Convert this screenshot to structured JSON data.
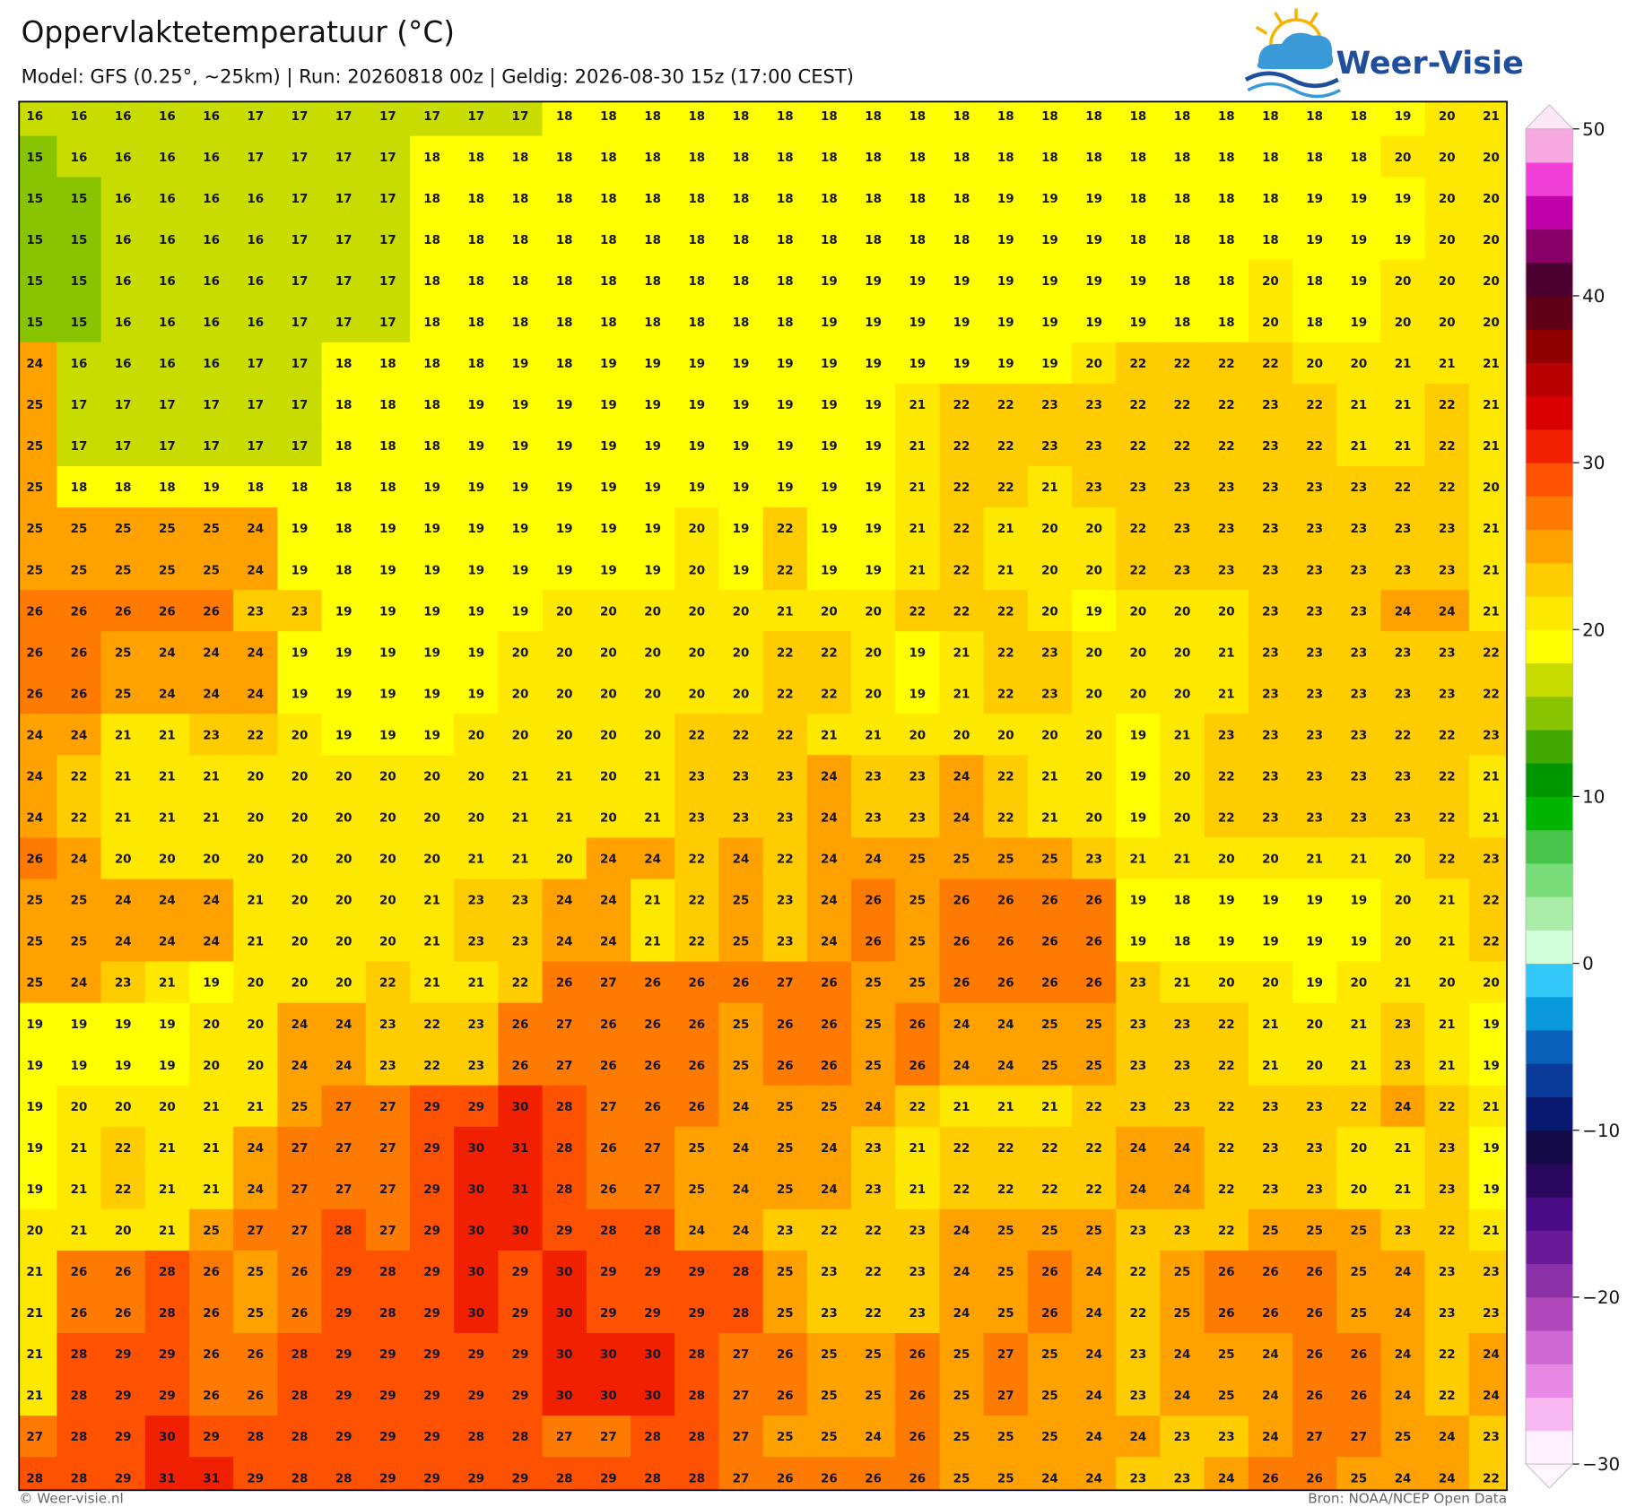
{
  "header": {
    "title": "Oppervlaktetemperatuur (°C)",
    "subtitle": "Model: GFS (0.25°, ~25km)  |  Run: 20260818 00z  |  Geldig: 2026-08-30 15z (17:00 CEST)"
  },
  "logo": "Weer-Visie",
  "map": {
    "grid": [
      [
        16,
        16,
        16,
        16,
        16,
        17,
        17,
        17,
        17,
        17,
        17,
        17,
        18,
        18,
        18,
        18,
        18,
        18,
        18,
        18,
        18,
        18,
        18,
        18,
        18,
        18,
        18,
        18,
        18,
        18,
        18,
        19,
        20,
        21
      ],
      [
        15,
        16,
        16,
        16,
        16,
        17,
        17,
        17,
        17,
        18,
        18,
        18,
        18,
        18,
        18,
        18,
        18,
        18,
        18,
        18,
        18,
        18,
        18,
        18,
        18,
        18,
        18,
        18,
        18,
        18,
        18,
        20,
        20,
        20
      ],
      [
        15,
        15,
        16,
        16,
        16,
        16,
        17,
        17,
        17,
        18,
        18,
        18,
        18,
        18,
        18,
        18,
        18,
        18,
        18,
        18,
        18,
        18,
        19,
        19,
        19,
        18,
        18,
        18,
        18,
        19,
        19,
        19,
        20,
        20
      ],
      [
        15,
        15,
        16,
        16,
        16,
        16,
        17,
        17,
        17,
        18,
        18,
        18,
        18,
        18,
        18,
        18,
        18,
        18,
        18,
        18,
        18,
        18,
        19,
        19,
        19,
        18,
        18,
        18,
        18,
        19,
        19,
        19,
        20,
        20
      ],
      [
        15,
        15,
        16,
        16,
        16,
        16,
        17,
        17,
        17,
        18,
        18,
        18,
        18,
        18,
        18,
        18,
        18,
        18,
        19,
        19,
        19,
        19,
        19,
        19,
        19,
        19,
        18,
        18,
        20,
        18,
        19,
        20,
        20,
        20
      ],
      [
        15,
        15,
        16,
        16,
        16,
        16,
        17,
        17,
        17,
        18,
        18,
        18,
        18,
        18,
        18,
        18,
        18,
        18,
        19,
        19,
        19,
        19,
        19,
        19,
        19,
        19,
        18,
        18,
        20,
        18,
        19,
        20,
        20,
        20
      ],
      [
        24,
        16,
        16,
        16,
        16,
        17,
        17,
        18,
        18,
        18,
        18,
        19,
        18,
        19,
        19,
        19,
        19,
        19,
        19,
        19,
        19,
        19,
        19,
        19,
        20,
        22,
        22,
        22,
        22,
        20,
        20,
        21,
        21,
        21
      ],
      [
        25,
        17,
        17,
        17,
        17,
        17,
        17,
        18,
        18,
        18,
        19,
        19,
        19,
        19,
        19,
        19,
        19,
        19,
        19,
        19,
        21,
        22,
        22,
        23,
        23,
        22,
        22,
        22,
        23,
        22,
        21,
        21,
        22,
        21
      ],
      [
        25,
        17,
        17,
        17,
        17,
        17,
        17,
        18,
        18,
        18,
        19,
        19,
        19,
        19,
        19,
        19,
        19,
        19,
        19,
        19,
        21,
        22,
        22,
        23,
        23,
        22,
        22,
        22,
        23,
        22,
        21,
        21,
        22,
        21
      ],
      [
        25,
        18,
        18,
        18,
        19,
        18,
        18,
        18,
        18,
        19,
        19,
        19,
        19,
        19,
        19,
        19,
        19,
        19,
        19,
        19,
        21,
        22,
        22,
        21,
        23,
        23,
        23,
        23,
        23,
        23,
        23,
        22,
        22,
        20
      ],
      [
        25,
        25,
        25,
        25,
        25,
        24,
        19,
        18,
        19,
        19,
        19,
        19,
        19,
        19,
        19,
        20,
        19,
        22,
        19,
        19,
        21,
        22,
        21,
        20,
        20,
        22,
        23,
        23,
        23,
        23,
        23,
        23,
        23,
        21
      ],
      [
        25,
        25,
        25,
        25,
        25,
        24,
        19,
        18,
        19,
        19,
        19,
        19,
        19,
        19,
        19,
        20,
        19,
        22,
        19,
        19,
        21,
        22,
        21,
        20,
        20,
        22,
        23,
        23,
        23,
        23,
        23,
        23,
        23,
        21
      ],
      [
        26,
        26,
        26,
        26,
        26,
        23,
        23,
        19,
        19,
        19,
        19,
        19,
        20,
        20,
        20,
        20,
        20,
        21,
        20,
        20,
        22,
        22,
        22,
        20,
        19,
        20,
        20,
        20,
        23,
        23,
        23,
        24,
        24,
        21
      ],
      [
        26,
        26,
        25,
        24,
        24,
        24,
        19,
        19,
        19,
        19,
        19,
        20,
        20,
        20,
        20,
        20,
        20,
        22,
        22,
        20,
        19,
        21,
        22,
        23,
        20,
        20,
        20,
        21,
        23,
        23,
        23,
        23,
        23,
        22
      ],
      [
        26,
        26,
        25,
        24,
        24,
        24,
        19,
        19,
        19,
        19,
        19,
        20,
        20,
        20,
        20,
        20,
        20,
        22,
        22,
        20,
        19,
        21,
        22,
        23,
        20,
        20,
        20,
        21,
        23,
        23,
        23,
        23,
        23,
        22
      ],
      [
        24,
        24,
        21,
        21,
        23,
        22,
        20,
        19,
        19,
        19,
        20,
        20,
        20,
        20,
        20,
        22,
        22,
        22,
        21,
        21,
        20,
        20,
        20,
        20,
        20,
        19,
        21,
        23,
        23,
        23,
        23,
        22,
        22,
        23
      ],
      [
        24,
        22,
        21,
        21,
        21,
        20,
        20,
        20,
        20,
        20,
        20,
        21,
        21,
        20,
        21,
        23,
        23,
        23,
        24,
        23,
        23,
        24,
        22,
        21,
        20,
        19,
        20,
        22,
        23,
        23,
        23,
        23,
        22,
        21
      ],
      [
        24,
        22,
        21,
        21,
        21,
        20,
        20,
        20,
        20,
        20,
        20,
        21,
        21,
        20,
        21,
        23,
        23,
        23,
        24,
        23,
        23,
        24,
        22,
        21,
        20,
        19,
        20,
        22,
        23,
        23,
        23,
        23,
        22,
        21
      ],
      [
        26,
        24,
        20,
        20,
        20,
        20,
        20,
        20,
        20,
        20,
        21,
        21,
        20,
        24,
        24,
        22,
        24,
        22,
        24,
        24,
        25,
        25,
        25,
        25,
        23,
        21,
        21,
        20,
        20,
        21,
        21,
        20,
        22,
        23
      ],
      [
        25,
        25,
        24,
        24,
        24,
        21,
        20,
        20,
        20,
        21,
        23,
        23,
        24,
        24,
        21,
        22,
        25,
        23,
        24,
        26,
        25,
        26,
        26,
        26,
        26,
        19,
        18,
        19,
        19,
        19,
        19,
        20,
        21,
        22
      ],
      [
        25,
        25,
        24,
        24,
        24,
        21,
        20,
        20,
        20,
        21,
        23,
        23,
        24,
        24,
        21,
        22,
        25,
        23,
        24,
        26,
        25,
        26,
        26,
        26,
        26,
        19,
        18,
        19,
        19,
        19,
        19,
        20,
        21,
        22
      ],
      [
        25,
        24,
        23,
        21,
        19,
        20,
        20,
        20,
        22,
        21,
        21,
        22,
        26,
        27,
        26,
        26,
        26,
        27,
        26,
        25,
        25,
        26,
        26,
        26,
        26,
        23,
        21,
        20,
        20,
        19,
        20,
        21,
        20,
        20
      ],
      [
        19,
        19,
        19,
        19,
        20,
        20,
        24,
        24,
        23,
        22,
        23,
        26,
        27,
        26,
        26,
        26,
        25,
        26,
        26,
        25,
        26,
        24,
        24,
        25,
        25,
        23,
        23,
        22,
        21,
        20,
        21,
        23,
        21,
        19
      ],
      [
        19,
        19,
        19,
        19,
        20,
        20,
        24,
        24,
        23,
        22,
        23,
        26,
        27,
        26,
        26,
        26,
        25,
        26,
        26,
        25,
        26,
        24,
        24,
        25,
        25,
        23,
        23,
        22,
        21,
        20,
        21,
        23,
        21,
        19
      ],
      [
        19,
        20,
        20,
        20,
        21,
        21,
        25,
        27,
        27,
        29,
        29,
        30,
        28,
        27,
        26,
        26,
        24,
        25,
        25,
        24,
        22,
        21,
        21,
        21,
        22,
        23,
        23,
        22,
        23,
        23,
        22,
        24,
        22,
        21
      ],
      [
        19,
        21,
        22,
        21,
        21,
        24,
        27,
        27,
        27,
        29,
        30,
        31,
        28,
        26,
        27,
        25,
        24,
        25,
        24,
        23,
        21,
        22,
        22,
        22,
        22,
        24,
        24,
        22,
        23,
        23,
        20,
        21,
        23,
        19
      ],
      [
        19,
        21,
        22,
        21,
        21,
        24,
        27,
        27,
        27,
        29,
        30,
        31,
        28,
        26,
        27,
        25,
        24,
        25,
        24,
        23,
        21,
        22,
        22,
        22,
        22,
        24,
        24,
        22,
        23,
        23,
        20,
        21,
        23,
        19
      ],
      [
        20,
        21,
        20,
        21,
        25,
        27,
        27,
        28,
        27,
        29,
        30,
        30,
        29,
        28,
        28,
        24,
        24,
        23,
        22,
        22,
        23,
        24,
        25,
        25,
        25,
        23,
        23,
        22,
        25,
        25,
        25,
        23,
        22,
        21
      ],
      [
        21,
        26,
        26,
        28,
        26,
        25,
        26,
        29,
        28,
        29,
        30,
        29,
        30,
        29,
        29,
        29,
        28,
        25,
        23,
        22,
        23,
        24,
        25,
        26,
        24,
        22,
        25,
        26,
        26,
        26,
        25,
        24,
        23,
        23
      ],
      [
        21,
        26,
        26,
        28,
        26,
        25,
        26,
        29,
        28,
        29,
        30,
        29,
        30,
        29,
        29,
        29,
        28,
        25,
        23,
        22,
        23,
        24,
        25,
        26,
        24,
        22,
        25,
        26,
        26,
        26,
        25,
        24,
        23,
        23
      ],
      [
        21,
        28,
        29,
        29,
        26,
        26,
        28,
        29,
        29,
        29,
        29,
        29,
        30,
        30,
        30,
        28,
        27,
        26,
        25,
        25,
        26,
        25,
        27,
        25,
        24,
        23,
        24,
        25,
        24,
        26,
        26,
        24,
        22,
        24
      ],
      [
        21,
        28,
        29,
        29,
        26,
        26,
        28,
        29,
        29,
        29,
        29,
        29,
        30,
        30,
        30,
        28,
        27,
        26,
        25,
        25,
        26,
        25,
        27,
        25,
        24,
        23,
        24,
        25,
        24,
        26,
        26,
        24,
        22,
        24
      ],
      [
        27,
        28,
        29,
        30,
        29,
        28,
        28,
        29,
        29,
        29,
        28,
        28,
        27,
        27,
        28,
        28,
        27,
        25,
        25,
        24,
        26,
        25,
        25,
        25,
        24,
        24,
        23,
        23,
        24,
        27,
        27,
        25,
        24,
        23
      ],
      [
        28,
        28,
        29,
        31,
        31,
        29,
        28,
        28,
        29,
        29,
        29,
        29,
        28,
        29,
        28,
        28,
        27,
        26,
        26,
        26,
        26,
        25,
        25,
        24,
        24,
        23,
        23,
        24,
        26,
        26,
        25,
        24,
        24,
        22
      ]
    ]
  },
  "colorbar": {
    "lim": [
      -30,
      50
    ],
    "ticks": [
      {
        "value": -30,
        "label": "−30"
      },
      {
        "value": -20,
        "label": "−20"
      },
      {
        "value": -10,
        "label": "−10"
      },
      0,
      10,
      20,
      30,
      40,
      50
    ],
    "colors": [
      "#fff0ff",
      "#f8b8f2",
      "#e88ae5",
      "#d068d4",
      "#b048bc",
      "#8c30a8",
      "#6a1a96",
      "#4a0c84",
      "#2a0860",
      "#150a48",
      "#0a1a70",
      "#0a3a9a",
      "#0860b8",
      "#0a98dc",
      "#33c8f8",
      "#d0ffd8",
      "#a8eca8",
      "#78dc78",
      "#48c448",
      "#00b400",
      "#009600",
      "#40a800",
      "#88c400",
      "#c8dc00",
      "#ffff00",
      "#ffe800",
      "#ffcc00",
      "#ffa200",
      "#ff7a00",
      "#ff5200",
      "#f02000",
      "#d80000",
      "#b80000",
      "#900000",
      "#600018",
      "#4a0030",
      "#880068",
      "#c000a8",
      "#f040d8",
      "#f8a8e0"
    ]
  },
  "footer": {
    "left": "© Weer-visie.nl",
    "right": "Bron: NOAA/NCEP Open Data"
  }
}
